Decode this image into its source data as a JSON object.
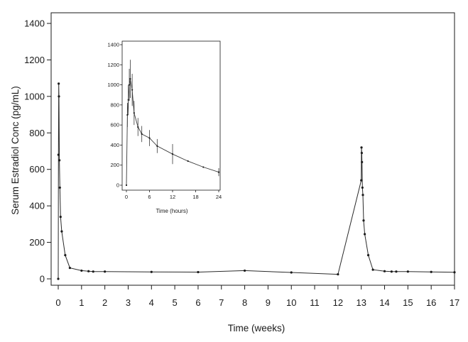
{
  "chart_data": [
    {
      "type": "line",
      "title": "",
      "xlabel": "Time  (weeks)",
      "ylabel": "Serum  Estradiol  Conc  (pg/mL)",
      "xlim": [
        0,
        17
      ],
      "ylim": [
        0,
        1400
      ],
      "xticks": [
        "0",
        "1",
        "2",
        "3",
        "4",
        "5",
        "6",
        "7",
        "8",
        "9",
        "10",
        "11",
        "12",
        "13",
        "14",
        "15",
        "16",
        "17"
      ],
      "yticks": [
        "0",
        "200",
        "400",
        "600",
        "800",
        "1000",
        "1200",
        "1400"
      ],
      "grid": false,
      "legend": "none",
      "series": [
        {
          "x": [
            0,
            0.01,
            0.02,
            0.03,
            0.05,
            0.07,
            0.1,
            0.15,
            0.3,
            0.5,
            1,
            1.3,
            1.5,
            2,
            4,
            6,
            8,
            10,
            12,
            13,
            13.01,
            13.02,
            13.03,
            13.05,
            13.07,
            13.1,
            13.15,
            13.3,
            13.5,
            14,
            14.3,
            14.5,
            15,
            16,
            17
          ],
          "y": [
            0,
            680,
            1070,
            1000,
            650,
            500,
            340,
            260,
            130,
            60,
            45,
            42,
            40,
            40,
            38,
            37,
            45,
            35,
            25,
            540,
            720,
            690,
            640,
            500,
            460,
            320,
            245,
            130,
            50,
            42,
            40,
            40,
            40,
            38,
            36
          ]
        }
      ]
    },
    {
      "type": "line",
      "title": "",
      "xlabel": "Time (hours)",
      "ylabel": "",
      "xlim": [
        0,
        24
      ],
      "ylim": [
        0,
        1400
      ],
      "xticks": [
        "0",
        "6",
        "12",
        "18",
        "24"
      ],
      "yticks": [
        "0",
        "200",
        "400",
        "600",
        "800",
        "1000",
        "1200",
        "1400"
      ],
      "grid": false,
      "legend": "none",
      "series": [
        {
          "x": [
            0,
            0.25,
            0.5,
            0.75,
            1,
            1.5,
            2,
            3,
            4,
            6,
            8,
            12,
            16,
            20,
            24
          ],
          "y": [
            0,
            700,
            850,
            1000,
            1060,
            950,
            720,
            580,
            510,
            470,
            390,
            310,
            240,
            180,
            130
          ],
          "error": [
            0,
            120,
            150,
            160,
            190,
            160,
            120,
            90,
            80,
            80,
            70,
            100,
            0,
            0,
            40
          ]
        }
      ]
    }
  ]
}
